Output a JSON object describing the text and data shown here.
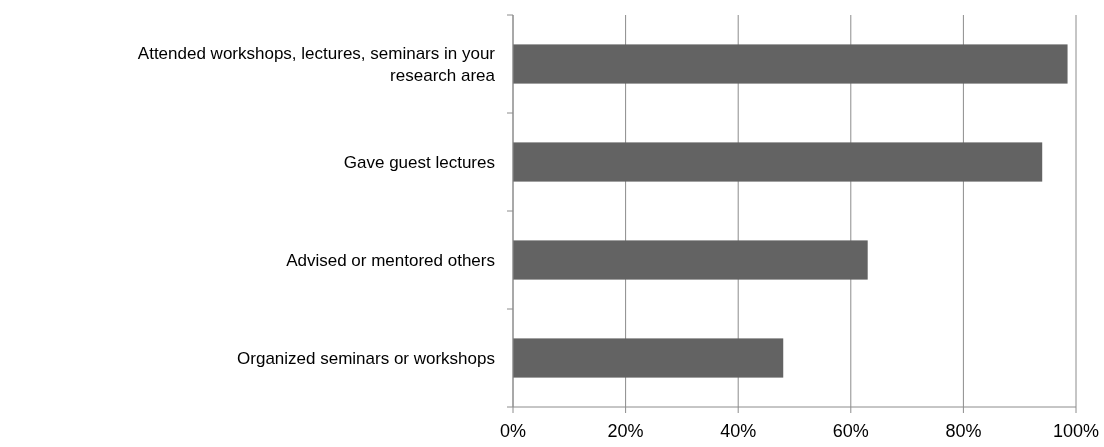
{
  "chart_data": {
    "type": "bar",
    "orientation": "horizontal",
    "categories": [
      "Attended workshops, lectures, seminars in your research area",
      "Gave guest lectures",
      "Advised or mentored others",
      "Organized seminars or workshops"
    ],
    "values": [
      98.5,
      94,
      63,
      48
    ],
    "color": "#636363",
    "xlim": [
      0,
      100
    ],
    "xticks": [
      {
        "value": 0,
        "label": "0%"
      },
      {
        "value": 20,
        "label": "20%"
      },
      {
        "value": 40,
        "label": "40%"
      },
      {
        "value": 60,
        "label": "60%"
      },
      {
        "value": 80,
        "label": "80%"
      },
      {
        "value": 100,
        "label": "100%"
      }
    ],
    "grid": "x"
  }
}
